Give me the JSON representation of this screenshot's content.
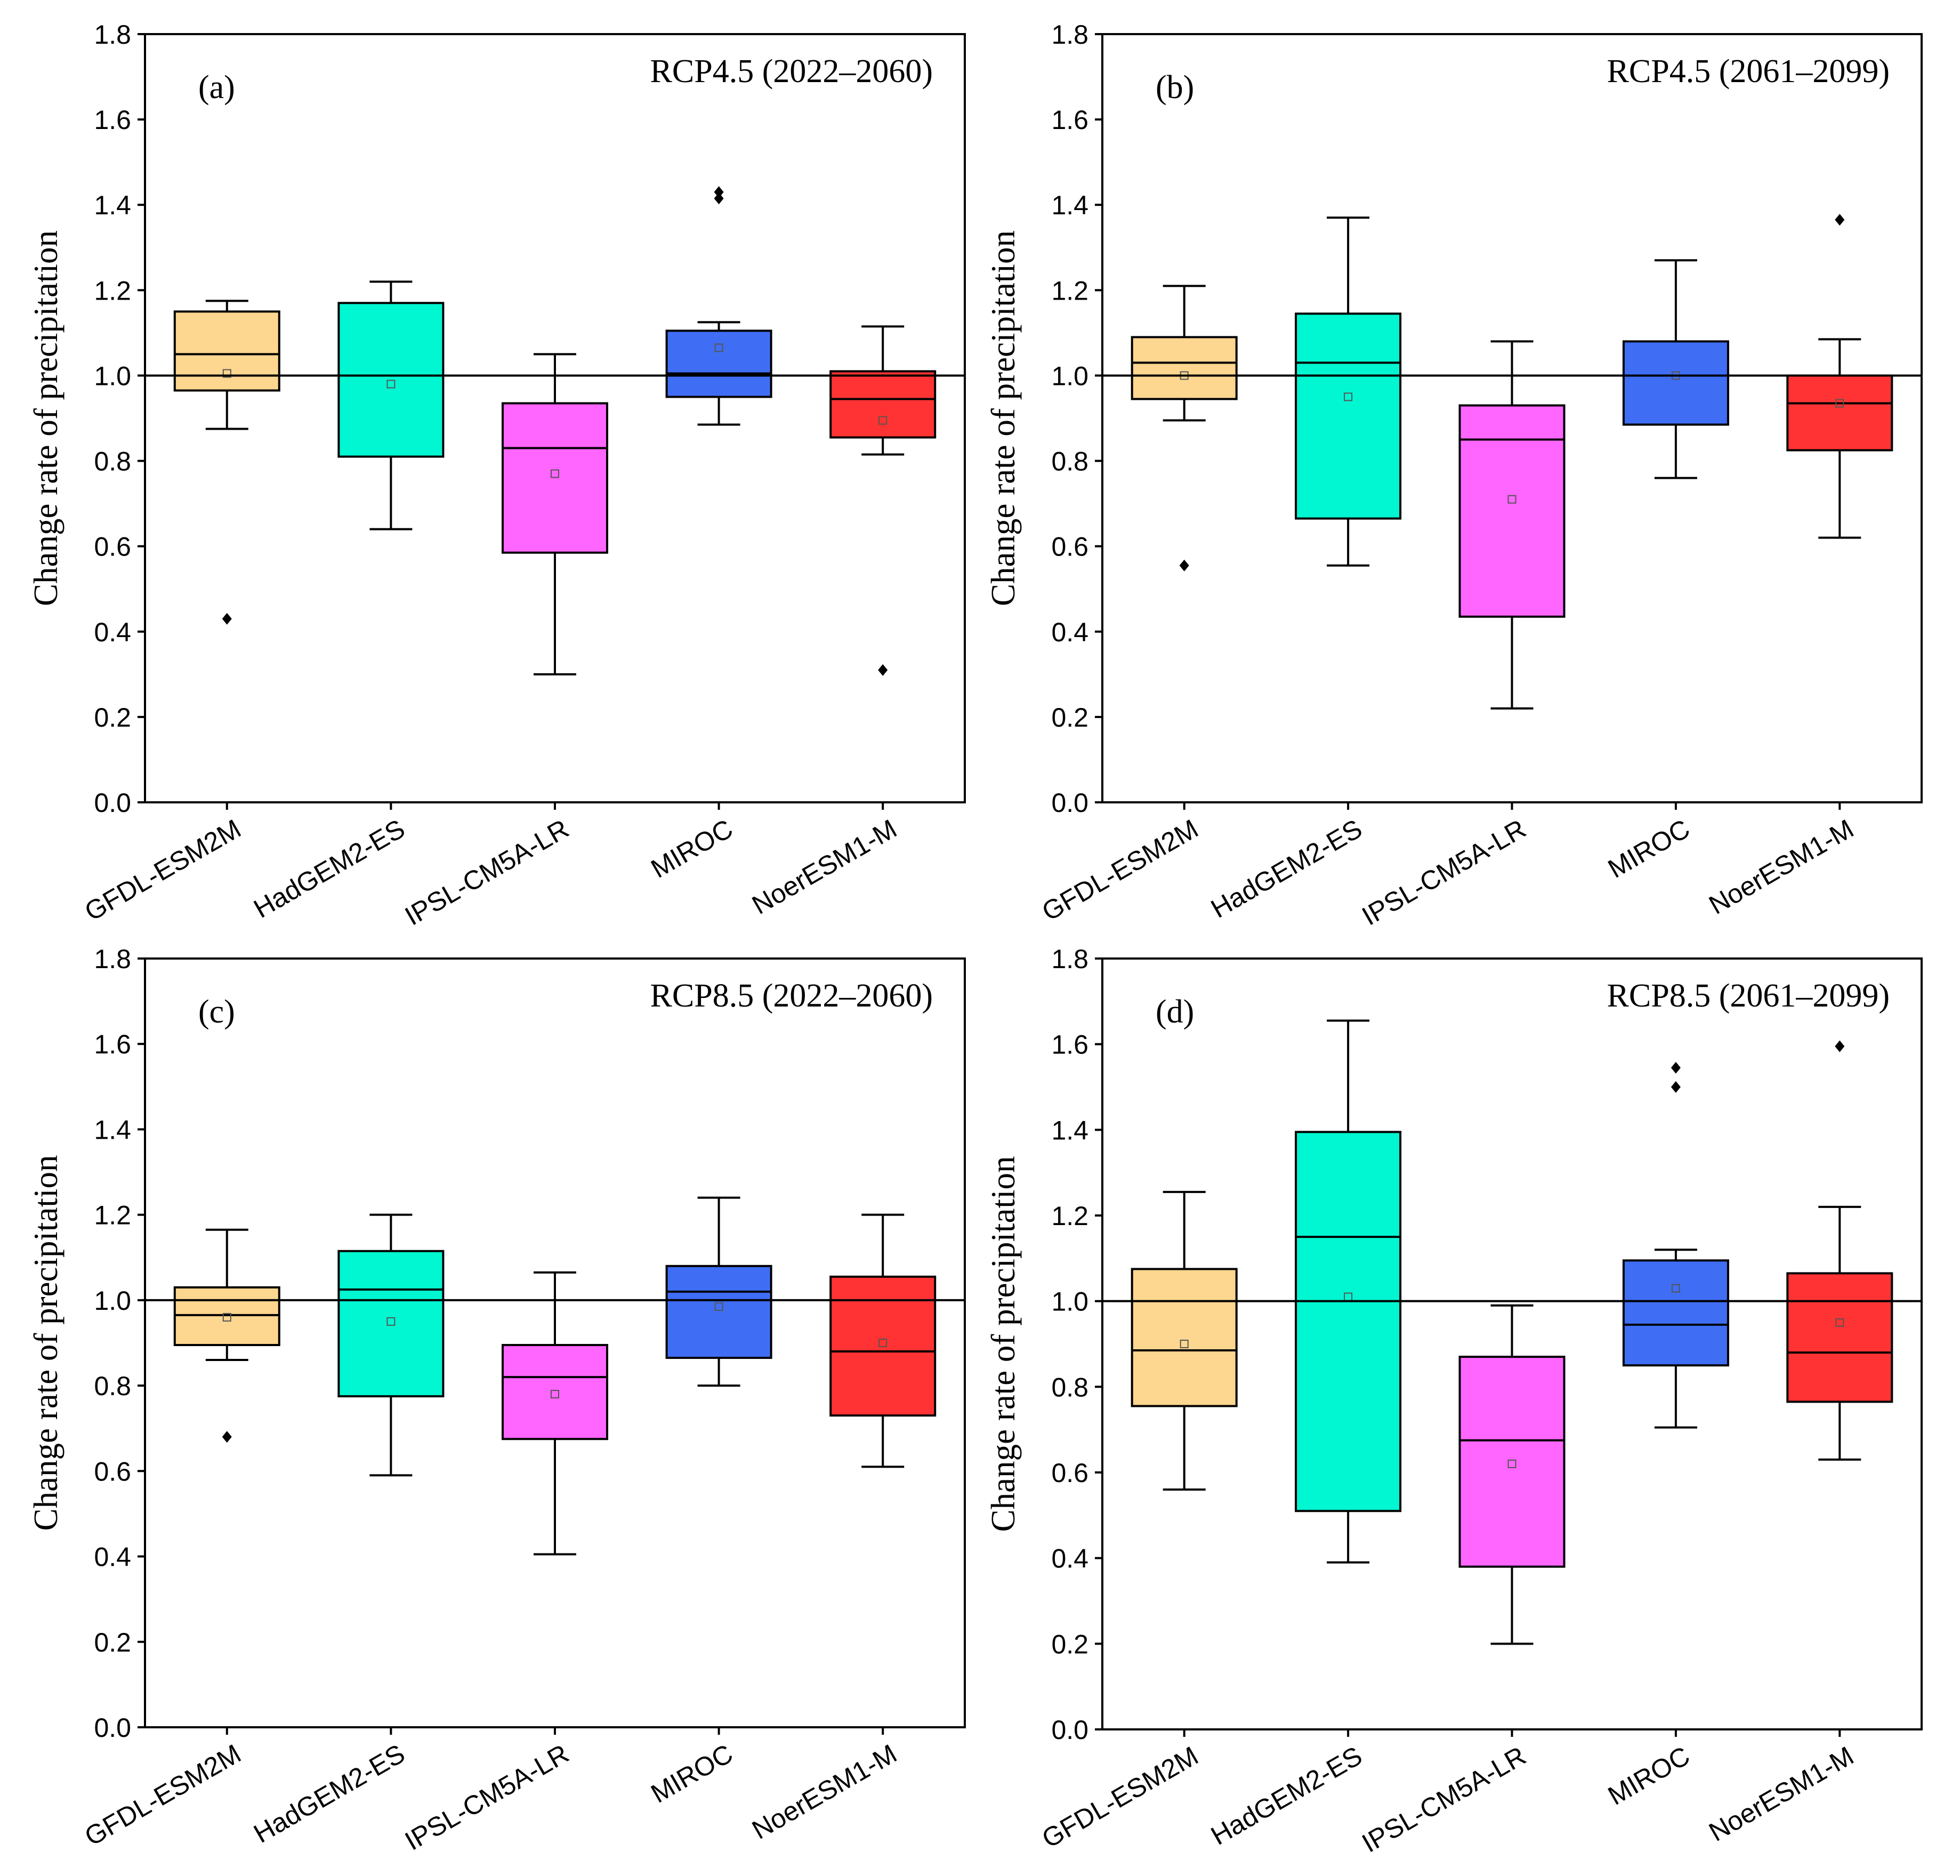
{
  "chart_data": [
    {
      "type": "box",
      "panel_label": "(a)",
      "title": "RCP4.5 (2022–2060)",
      "ylabel": "Change rate of precipitation",
      "xlabel": "",
      "ylim": [
        0,
        1.8
      ],
      "yticks": [
        "0.0",
        "0.2",
        "0.4",
        "0.6",
        "0.8",
        "1.0",
        "1.2",
        "1.4",
        "1.6",
        "1.8"
      ],
      "reference_line": 1.0,
      "categories": [
        "GFDL-ESM2M",
        "HadGEM2-ES",
        "IPSL-CM5A-LR",
        "MIROC",
        "NoerESM1-M"
      ],
      "boxes": [
        {
          "whisker_low": 0.875,
          "q1": 0.965,
          "median": 1.05,
          "q3": 1.15,
          "whisker_high": 1.175,
          "mean": 1.005,
          "outliers": [
            0.43
          ],
          "color": "#FDD68F"
        },
        {
          "whisker_low": 0.64,
          "q1": 0.81,
          "median": 1.0,
          "q3": 1.17,
          "whisker_high": 1.22,
          "mean": 0.98,
          "outliers": [],
          "color": "#00F7D1"
        },
        {
          "whisker_low": 0.3,
          "q1": 0.585,
          "median": 0.83,
          "q3": 0.935,
          "whisker_high": 1.05,
          "mean": 0.77,
          "outliers": [],
          "color": "#FF66FF"
        },
        {
          "whisker_low": 0.885,
          "q1": 0.95,
          "median": 1.005,
          "q3": 1.105,
          "whisker_high": 1.125,
          "mean": 1.065,
          "outliers": [
            1.43,
            1.415
          ],
          "color": "#3F6EF4"
        },
        {
          "whisker_low": 0.815,
          "q1": 0.855,
          "median": 0.945,
          "q3": 1.01,
          "whisker_high": 1.115,
          "mean": 0.895,
          "outliers": [
            0.31
          ],
          "color": "#FF3333"
        }
      ]
    },
    {
      "type": "box",
      "panel_label": "(b)",
      "title": "RCP4.5 (2061–2099)",
      "ylabel": "Change rate of precipitation",
      "xlabel": "",
      "ylim": [
        0,
        1.8
      ],
      "yticks": [
        "0.0",
        "0.2",
        "0.4",
        "0.6",
        "0.8",
        "1.0",
        "1.2",
        "1.4",
        "1.6",
        "1.8"
      ],
      "reference_line": 1.0,
      "categories": [
        "GFDL-ESM2M",
        "HadGEM2-ES",
        "IPSL-CM5A-LR",
        "MIROC",
        "NoerESM1-M"
      ],
      "boxes": [
        {
          "whisker_low": 0.895,
          "q1": 0.945,
          "median": 1.03,
          "q3": 1.09,
          "whisker_high": 1.21,
          "mean": 1.0,
          "outliers": [
            0.555
          ],
          "color": "#FDD68F"
        },
        {
          "whisker_low": 0.555,
          "q1": 0.665,
          "median": 1.03,
          "q3": 1.145,
          "whisker_high": 1.37,
          "mean": 0.95,
          "outliers": [],
          "color": "#00F7D1"
        },
        {
          "whisker_low": 0.22,
          "q1": 0.435,
          "median": 0.85,
          "q3": 0.93,
          "whisker_high": 1.08,
          "mean": 0.71,
          "outliers": [],
          "color": "#FF66FF"
        },
        {
          "whisker_low": 0.76,
          "q1": 0.885,
          "median": 1.0,
          "q3": 1.08,
          "whisker_high": 1.27,
          "mean": 1.0,
          "outliers": [],
          "color": "#3F6EF4"
        },
        {
          "whisker_low": 0.62,
          "q1": 0.825,
          "median": 0.935,
          "q3": 1.0,
          "whisker_high": 1.085,
          "mean": 0.935,
          "outliers": [
            1.365
          ],
          "color": "#FF3333"
        }
      ]
    },
    {
      "type": "box",
      "panel_label": "(c)",
      "title": "RCP8.5 (2022–2060)",
      "ylabel": "Change rate of precipitation",
      "xlabel": "",
      "ylim": [
        0,
        1.8
      ],
      "yticks": [
        "0.0",
        "0.2",
        "0.4",
        "0.6",
        "0.8",
        "1.0",
        "1.2",
        "1.4",
        "1.6",
        "1.8"
      ],
      "reference_line": 1.0,
      "categories": [
        "GFDL-ESM2M",
        "HadGEM2-ES",
        "IPSL-CM5A-LR",
        "MIROC",
        "NoerESM1-M"
      ],
      "boxes": [
        {
          "whisker_low": 0.86,
          "q1": 0.895,
          "median": 0.965,
          "q3": 1.03,
          "whisker_high": 1.165,
          "mean": 0.96,
          "outliers": [
            0.68
          ],
          "color": "#FDD68F"
        },
        {
          "whisker_low": 0.59,
          "q1": 0.775,
          "median": 1.025,
          "q3": 1.115,
          "whisker_high": 1.2,
          "mean": 0.95,
          "outliers": [],
          "color": "#00F7D1"
        },
        {
          "whisker_low": 0.405,
          "q1": 0.675,
          "median": 0.82,
          "q3": 0.895,
          "whisker_high": 1.065,
          "mean": 0.78,
          "outliers": [],
          "color": "#FF66FF"
        },
        {
          "whisker_low": 0.8,
          "q1": 0.865,
          "median": 1.02,
          "q3": 1.08,
          "whisker_high": 1.24,
          "mean": 0.985,
          "outliers": [],
          "color": "#3F6EF4"
        },
        {
          "whisker_low": 0.61,
          "q1": 0.73,
          "median": 0.88,
          "q3": 1.055,
          "whisker_high": 1.2,
          "mean": 0.9,
          "outliers": [],
          "color": "#FF3333"
        }
      ]
    },
    {
      "type": "box",
      "panel_label": "(d)",
      "title": "RCP8.5 (2061–2099)",
      "ylabel": "Change rate of precipitation",
      "xlabel": "",
      "ylim": [
        0,
        1.8
      ],
      "yticks": [
        "0.0",
        "0.2",
        "0.4",
        "0.6",
        "0.8",
        "1.0",
        "1.2",
        "1.4",
        "1.6",
        "1.8"
      ],
      "reference_line": 1.0,
      "categories": [
        "GFDL-ESM2M",
        "HadGEM2-ES",
        "IPSL-CM5A-LR",
        "MIROC",
        "NoerESM1-M"
      ],
      "boxes": [
        {
          "whisker_low": 0.56,
          "q1": 0.755,
          "median": 0.885,
          "q3": 1.075,
          "whisker_high": 1.255,
          "mean": 0.9,
          "outliers": [],
          "color": "#FDD68F"
        },
        {
          "whisker_low": 0.39,
          "q1": 0.51,
          "median": 1.15,
          "q3": 1.395,
          "whisker_high": 1.655,
          "mean": 1.01,
          "outliers": [],
          "color": "#00F7D1"
        },
        {
          "whisker_low": 0.2,
          "q1": 0.38,
          "median": 0.675,
          "q3": 0.87,
          "whisker_high": 0.99,
          "mean": 0.62,
          "outliers": [],
          "color": "#FF66FF"
        },
        {
          "whisker_low": 0.705,
          "q1": 0.85,
          "median": 0.945,
          "q3": 1.095,
          "whisker_high": 1.12,
          "mean": 1.03,
          "outliers": [
            1.545,
            1.5
          ],
          "color": "#3F6EF4"
        },
        {
          "whisker_low": 0.63,
          "q1": 0.765,
          "median": 0.88,
          "q3": 1.065,
          "whisker_high": 1.22,
          "mean": 0.95,
          "outliers": [
            1.595
          ],
          "color": "#FF3333"
        }
      ]
    }
  ]
}
